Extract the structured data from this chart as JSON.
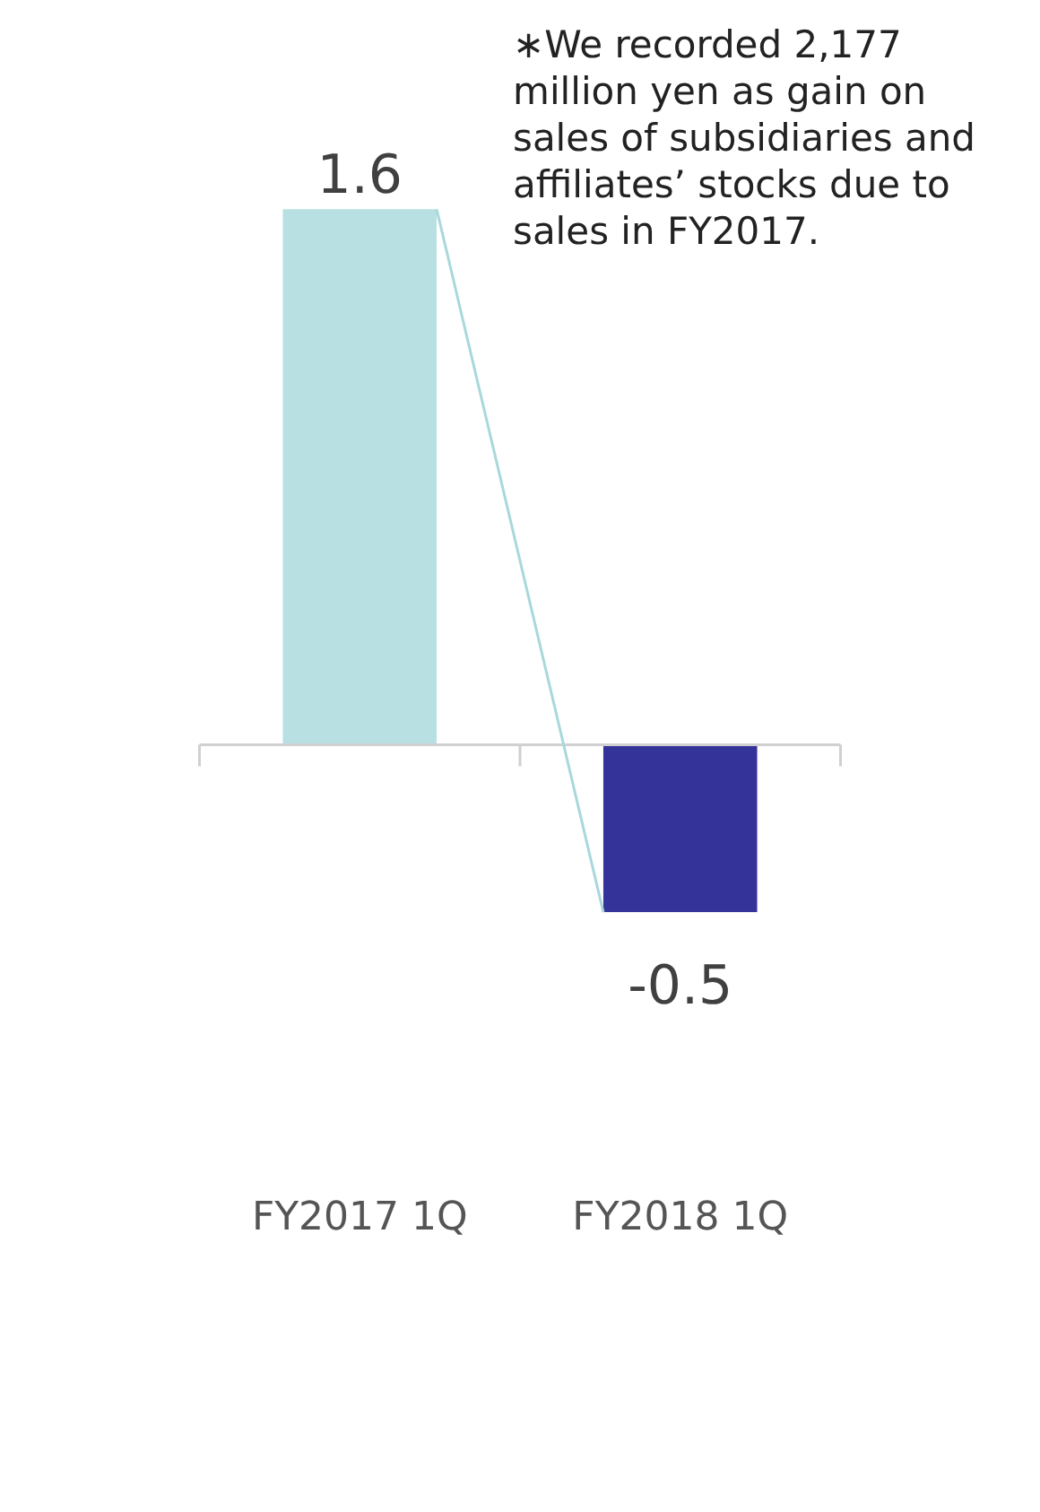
{
  "chart_data": {
    "type": "bar",
    "categories": [
      "FY2017 1Q",
      "FY2018 1Q"
    ],
    "values": [
      1.6,
      -0.5
    ],
    "colors": [
      "#b8e0e3",
      "#343399"
    ],
    "data_labels": true,
    "annotations": [
      "∗We recorded 2,177 million yen as gain on sales of subsidiaries and affiliates’ stocks due to sales in FY2017."
    ]
  }
}
